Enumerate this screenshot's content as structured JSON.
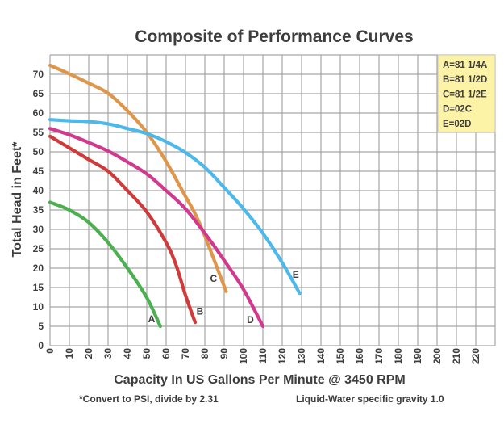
{
  "chart_data": {
    "type": "line",
    "title": "Composite of Performance Curves",
    "xlabel": "Capacity In US Gallons Per Minute @ 3450 RPM",
    "ylabel": "Total Head in Feet*",
    "xlim": [
      0,
      230
    ],
    "ylim": [
      0,
      75
    ],
    "x_ticks": [
      0,
      10,
      20,
      30,
      40,
      50,
      60,
      70,
      80,
      90,
      100,
      110,
      120,
      130,
      140,
      150,
      160,
      170,
      180,
      190,
      200,
      210,
      220
    ],
    "y_ticks": [
      0,
      5,
      10,
      15,
      20,
      25,
      30,
      35,
      40,
      45,
      50,
      55,
      60,
      65,
      70
    ],
    "grid": true,
    "legend": {
      "placement": "top-right",
      "entries": [
        "A=81 1/4A",
        "B=81 1/2D",
        "C=81 1/2E",
        "D=02C",
        "E=02D"
      ],
      "background": "#fdf3a6"
    },
    "series": [
      {
        "name": "A",
        "model": "81 1/4A",
        "color": "#4caf50",
        "x": [
          0,
          10,
          20,
          30,
          40,
          50,
          57
        ],
        "y": [
          37,
          35,
          31.8,
          26.6,
          20,
          12.4,
          5
        ]
      },
      {
        "name": "B",
        "model": "81 1/2D",
        "color": "#d03a3a",
        "x": [
          0,
          10,
          20,
          30,
          40,
          50,
          60,
          65,
          70,
          75
        ],
        "y": [
          54,
          51,
          48,
          45,
          40,
          34.5,
          26.6,
          21,
          13,
          6
        ]
      },
      {
        "name": "C",
        "model": "81 1/2E",
        "color": "#e0964a",
        "x": [
          0,
          10,
          20,
          30,
          40,
          50,
          60,
          70,
          75,
          80,
          91
        ],
        "y": [
          72.3,
          70.1,
          67.7,
          65.1,
          60.6,
          55,
          47.5,
          38.5,
          34,
          28.3,
          14
        ]
      },
      {
        "name": "D",
        "model": "02C",
        "color": "#d1398f",
        "x": [
          0,
          10,
          20,
          30,
          40,
          50,
          60,
          70,
          80,
          90,
          100,
          110
        ],
        "y": [
          56,
          54.4,
          52.4,
          50.2,
          47.4,
          44.3,
          40,
          35.3,
          29,
          22,
          14.5,
          5
        ]
      },
      {
        "name": "E",
        "model": "02D",
        "color": "#4db8ea",
        "x": [
          0,
          10,
          20,
          30,
          40,
          50,
          60,
          70,
          80,
          90,
          100,
          110,
          120,
          129
        ],
        "y": [
          58.3,
          58,
          57.8,
          57.2,
          56,
          54.7,
          52.6,
          49.8,
          46,
          40.8,
          35.3,
          29,
          21.4,
          13.5
        ]
      }
    ],
    "annotations": [
      {
        "text": "A",
        "series": "A",
        "x": 52.5,
        "y": 6
      },
      {
        "text": "B",
        "series": "B",
        "x": 77.5,
        "y": 8
      },
      {
        "text": "C",
        "series": "C",
        "x": 84.5,
        "y": 16.5
      },
      {
        "text": "D",
        "series": "D",
        "x": 103.5,
        "y": 5.8
      },
      {
        "text": "E",
        "series": "E",
        "x": 127,
        "y": 17.5
      }
    ],
    "footnotes": [
      "*Convert to PSI, divide by 2.31",
      "Liquid-Water specific gravity 1.0"
    ]
  }
}
